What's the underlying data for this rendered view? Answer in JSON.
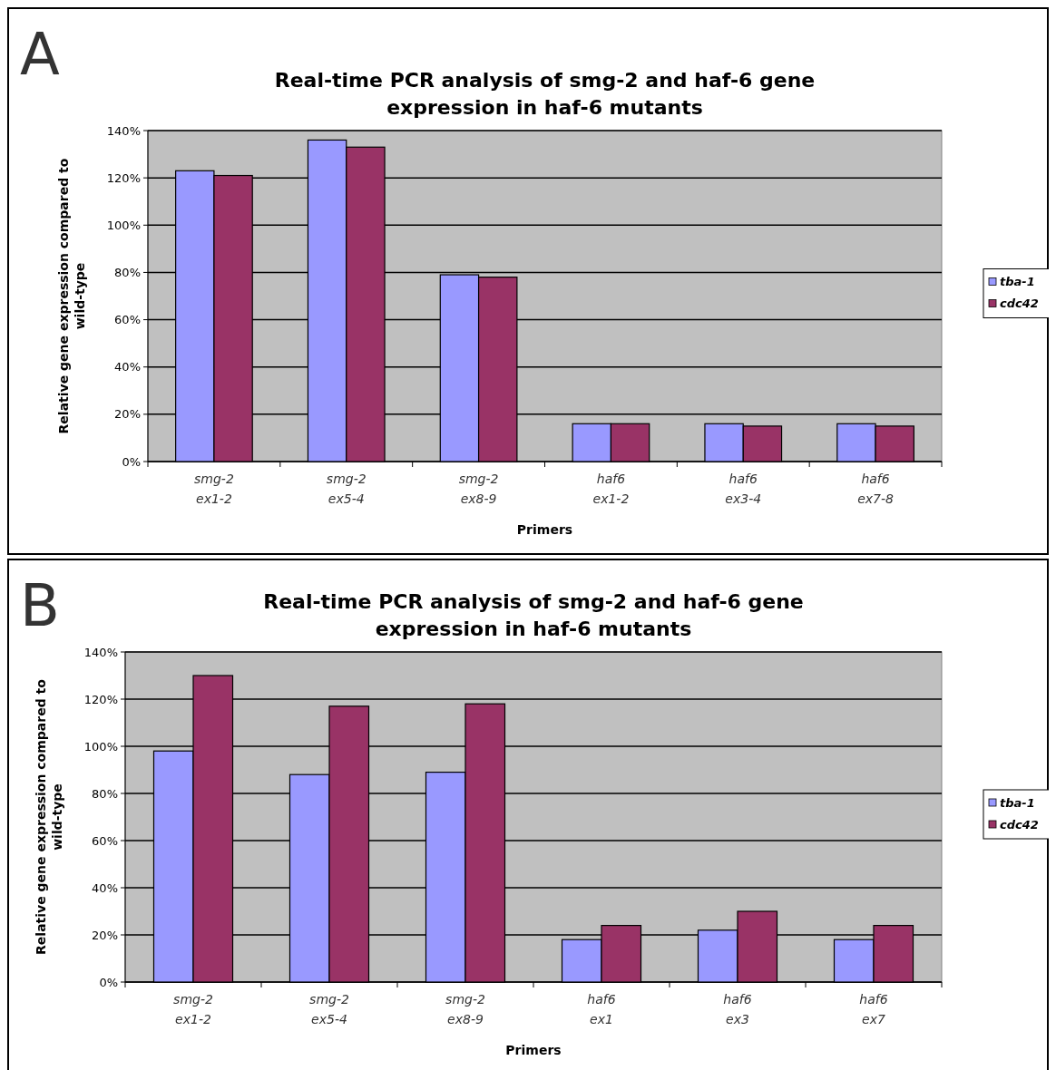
{
  "chart_data": [
    {
      "type": "bar",
      "title": "Real-time PCR analysis of smg-2 and haf-6 gene expression in haf-6 mutants",
      "xlabel": "Primers",
      "ylabel": "Relative gene expression compared to wild-type",
      "annotations": [
        "A"
      ],
      "categories": [
        "smg-2\nex1-2",
        "smg-2\nex5-4",
        "smg-2\nex8-9",
        "haf6\nex1-2",
        "haf6\nex3-4",
        "haf6\nex7-8"
      ],
      "series": [
        {
          "name": "tba-1",
          "color": "#9999ff",
          "values": [
            123,
            136,
            79,
            16,
            16,
            16
          ]
        },
        {
          "name": "cdc42",
          "color": "#993366",
          "values": [
            121,
            133,
            78,
            16,
            15,
            15
          ]
        }
      ],
      "ylim": [
        0,
        140
      ],
      "yticks": [
        {
          "value": 0,
          "label": "0%"
        },
        {
          "value": 20,
          "label": "20%"
        },
        {
          "value": 40,
          "label": "40%"
        },
        {
          "value": 60,
          "label": "60%"
        },
        {
          "value": 80,
          "label": "80%"
        },
        {
          "value": 100,
          "label": "100%"
        },
        {
          "value": 120,
          "label": "120%"
        },
        {
          "value": 140,
          "label": "140%"
        }
      ],
      "grid": "y",
      "legend": "right"
    },
    {
      "type": "bar",
      "title": "Real-time PCR analysis of smg-2 and haf-6 gene expression in haf-6 mutants",
      "xlabel": "Primers",
      "ylabel": "Relative gene expression compared to wild-type",
      "annotations": [
        "B"
      ],
      "categories": [
        "smg-2\nex1-2",
        "smg-2\nex5-4",
        "smg-2\nex8-9",
        "haf6\nex1",
        "haf6\nex3",
        "haf6\nex7"
      ],
      "series": [
        {
          "name": "tba-1",
          "color": "#9999ff",
          "values": [
            98,
            88,
            89,
            18,
            22,
            18
          ]
        },
        {
          "name": "cdc42",
          "color": "#993366",
          "values": [
            130,
            117,
            118,
            24,
            30,
            24
          ]
        }
      ],
      "ylim": [
        0,
        140
      ],
      "yticks": [
        {
          "value": 0,
          "label": "0%"
        },
        {
          "value": 20,
          "label": "20%"
        },
        {
          "value": 40,
          "label": "40%"
        },
        {
          "value": 60,
          "label": "60%"
        },
        {
          "value": 80,
          "label": "80%"
        },
        {
          "value": 100,
          "label": "100%"
        },
        {
          "value": 120,
          "label": "120%"
        },
        {
          "value": 140,
          "label": "140%"
        }
      ],
      "grid": "y",
      "legend": "right"
    }
  ]
}
